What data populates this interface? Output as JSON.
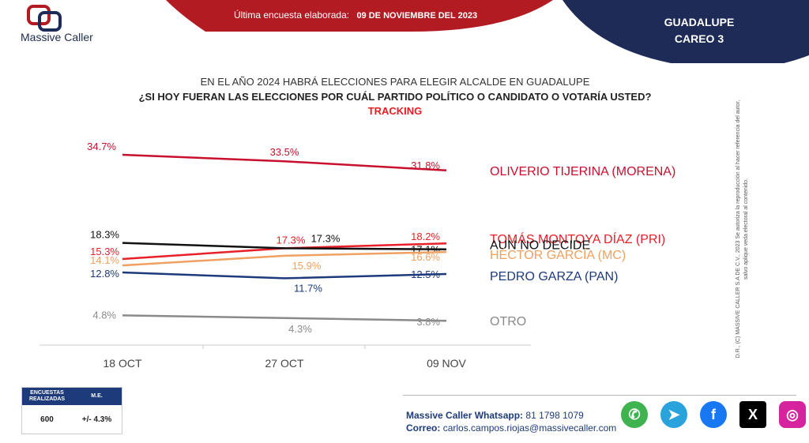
{
  "header": {
    "brand": "Massive Caller",
    "survey_label": "Última encuesta elaborada:",
    "survey_date": "09 DE NOVIEMBRE DEL 2023",
    "region": "GUADALUPE",
    "careo": "CAREO 3",
    "colors": {
      "red": "#b31b23",
      "navy": "#1d2b56"
    }
  },
  "question": {
    "line1": "EN EL AÑO 2024 HABRÁ ELECCIONES PARA ELEGIR ALCALDE EN GUADALUPE",
    "line2": "¿SI HOY FUERAN LAS ELECCIONES POR CUÁL PARTIDO POLÍTICO O CANDIDATO O VOTARÍA USTED?",
    "line3": "TRACKING"
  },
  "chart_data": {
    "type": "line",
    "categories": [
      "18 OCT",
      "27 OCT",
      "09 NOV"
    ],
    "series": [
      {
        "name": "OLIVERIO TIJERINA (MORENA)",
        "color": "#c8102e",
        "values": [
          34.7,
          33.5,
          31.8
        ],
        "labels": [
          "34.7%",
          "33.5%",
          "31.8%"
        ]
      },
      {
        "name": "TOMÁS MONTOYA DÍAZ (PRI)",
        "color": "#e8202a",
        "values": [
          15.3,
          17.3,
          18.2
        ],
        "labels": [
          "15.3%",
          "17.3%",
          "18.2%"
        ]
      },
      {
        "name": "AUN NO DECIDE",
        "color": "#111111",
        "values": [
          18.3,
          17.3,
          17.1
        ],
        "labels": [
          "18.3%",
          "17.3%",
          "17.1%"
        ]
      },
      {
        "name": "HÉCTOR GARCÍA (MC)",
        "color": "#f0a060",
        "values": [
          14.1,
          15.9,
          16.6
        ],
        "labels": [
          "14.1%",
          "15.9%",
          "16.6%"
        ]
      },
      {
        "name": "PEDRO GARZA (PAN)",
        "color": "#1d3a7a",
        "values": [
          12.8,
          11.7,
          12.5
        ],
        "labels": [
          "12.8%",
          "11.7%",
          "12.5%"
        ]
      },
      {
        "name": "OTRO",
        "color": "#8a8a8a",
        "values": [
          4.8,
          4.3,
          3.8
        ],
        "labels": [
          "4.8%",
          "4.3%",
          "3.8%"
        ]
      }
    ],
    "ylim": [
      0,
      40
    ],
    "grid": false,
    "legend": "inline-right"
  },
  "side_note": "D.R., (C) MASSIVE CALLER S.A DE C.V., 2023 Se autoriza la reproducción al hacer referencia del autor, salvo aplique veda electoral al contenido.",
  "stats": {
    "col1": "ENCUESTAS REALIZADAS",
    "col2": "M.E.",
    "val1": "600",
    "val2": "+/- 4.3%"
  },
  "contact": {
    "whatsapp_label": "Massive Caller Whatsapp:",
    "whatsapp": "81 1798 1079",
    "email_label": "Correo:",
    "email": "carlos.campos.riojas@massivecaller.com"
  },
  "social": [
    "whatsapp-icon",
    "telegram-icon",
    "facebook-icon",
    "x-icon",
    "instagram-icon"
  ]
}
